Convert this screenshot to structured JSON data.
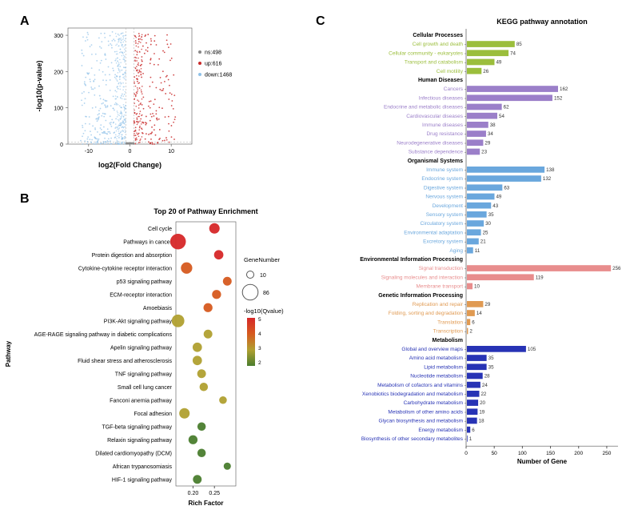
{
  "panelA": {
    "label": "A",
    "xlabel": "log2(Fold Change)",
    "ylabel": "-log10(p-value)",
    "xlim": [
      -15,
      15
    ],
    "ylim": [
      0,
      320
    ],
    "xticks": [
      -10,
      0,
      10
    ],
    "yticks": [
      0,
      100,
      200,
      300
    ],
    "legend": [
      {
        "label": "ns:498",
        "color": "#888888"
      },
      {
        "label": "up:616",
        "color": "#c92a2a"
      },
      {
        "label": "down:1468",
        "color": "#8fc1e8"
      }
    ],
    "colors": {
      "ns": "#888888",
      "up": "#c92a2a",
      "down": "#8fc1e8"
    },
    "hline_y": 5,
    "vline_x_neg": -1,
    "vline_x_pos": 1
  },
  "panelB": {
    "label": "B",
    "title": "Top 20 of Pathway Enrichment",
    "xlabel": "Rich Factor",
    "ylabel": "Pathway",
    "xlim": [
      0.16,
      0.3
    ],
    "xticks": [
      0.2,
      0.25
    ],
    "size_legend": {
      "title": "GeneNumber",
      "min": 10,
      "max": 86
    },
    "color_legend": {
      "title": "-log10(Qvalue)",
      "min": 2,
      "max": 5,
      "colors": [
        "#4a7d2e",
        "#b0a030",
        "#d65a1f",
        "#d62728"
      ]
    },
    "pathways": [
      {
        "name": "Cell cycle",
        "rich": 0.25,
        "n": 30,
        "q": 5.0
      },
      {
        "name": "Pathways in cancer",
        "rich": 0.165,
        "n": 86,
        "q": 4.8
      },
      {
        "name": "Protein digestion and absorption",
        "rich": 0.26,
        "n": 22,
        "q": 4.5
      },
      {
        "name": "Cytokine-cytokine receptor interaction",
        "rich": 0.185,
        "n": 38,
        "q": 4.3
      },
      {
        "name": "p53 signaling pathway",
        "rich": 0.28,
        "n": 18,
        "q": 4.2
      },
      {
        "name": "ECM-receptor interaction",
        "rich": 0.255,
        "n": 20,
        "q": 4.0
      },
      {
        "name": "Amoebiasis",
        "rich": 0.235,
        "n": 20,
        "q": 3.5
      },
      {
        "name": "PI3K-Akt signaling pathway",
        "rich": 0.165,
        "n": 50,
        "q": 3.4
      },
      {
        "name": "AGE-RAGE signaling pathway in diabetic complications",
        "rich": 0.235,
        "n": 18,
        "q": 3.2
      },
      {
        "name": "Apelin signaling pathway",
        "rich": 0.21,
        "n": 22,
        "q": 3.0
      },
      {
        "name": "Fluid shear stress and atherosclerosis",
        "rich": 0.21,
        "n": 22,
        "q": 2.9
      },
      {
        "name": "TNF signaling pathway",
        "rich": 0.22,
        "n": 18,
        "q": 2.8
      },
      {
        "name": "Small cell lung cancer",
        "rich": 0.225,
        "n": 16,
        "q": 2.7
      },
      {
        "name": "Fanconi anemia pathway",
        "rich": 0.27,
        "n": 12,
        "q": 2.6
      },
      {
        "name": "Focal adhesion",
        "rich": 0.18,
        "n": 30,
        "q": 2.5
      },
      {
        "name": "TGF-beta signaling pathway",
        "rich": 0.22,
        "n": 16,
        "q": 2.4
      },
      {
        "name": "Relaxin signaling pathway",
        "rich": 0.2,
        "n": 20,
        "q": 2.3
      },
      {
        "name": "Dilated cardiomyopathy (DCM)",
        "rich": 0.22,
        "n": 16,
        "q": 2.2
      },
      {
        "name": "African trypanosomiasis",
        "rich": 0.28,
        "n": 10,
        "q": 2.1
      },
      {
        "name": "HIF-1 signaling pathway",
        "rich": 0.21,
        "n": 18,
        "q": 2.0
      }
    ]
  },
  "panelC": {
    "label": "C",
    "title": "KEGG pathway annotation",
    "xlabel": "Number of Gene",
    "xlim": [
      0,
      270
    ],
    "xticks": [
      0,
      50,
      100,
      150,
      200,
      250
    ],
    "groups": [
      {
        "name": "Cellular Processes",
        "color": "#9bbe3c",
        "items": [
          {
            "name": "Cell growth and death",
            "n": 85
          },
          {
            "name": "Cellular community - eukaryotes",
            "n": 74
          },
          {
            "name": "Transport and catabolism",
            "n": 49
          },
          {
            "name": "Cell motility",
            "n": 26
          }
        ]
      },
      {
        "name": "Human Diseases",
        "color": "#9b7fc9",
        "items": [
          {
            "name": "Cancers",
            "n": 162
          },
          {
            "name": "Infectious diseases",
            "n": 152
          },
          {
            "name": "Endocrine and metabolic diseases",
            "n": 62
          },
          {
            "name": "Cardiovascular diseases",
            "n": 54
          },
          {
            "name": "Immune diseases",
            "n": 38
          },
          {
            "name": "Drug resistance",
            "n": 34
          },
          {
            "name": "Neurodegenerative diseases",
            "n": 29
          },
          {
            "name": "Substance dependence",
            "n": 23
          }
        ]
      },
      {
        "name": "Organismal Systems",
        "color": "#6aa7dd",
        "items": [
          {
            "name": "Immune system",
            "n": 138
          },
          {
            "name": "Endocrine system",
            "n": 132
          },
          {
            "name": "Digestive system",
            "n": 63
          },
          {
            "name": "Nervous system",
            "n": 49
          },
          {
            "name": "Development",
            "n": 43
          },
          {
            "name": "Sensory system",
            "n": 35
          },
          {
            "name": "Circulatory system",
            "n": 30
          },
          {
            "name": "Environmental adaptation",
            "n": 25
          },
          {
            "name": "Excretory system",
            "n": 21
          },
          {
            "name": "Aging",
            "n": 11
          }
        ]
      },
      {
        "name": "Environmental Information Processing",
        "color": "#e88d8d",
        "items": [
          {
            "name": "Signal transduction",
            "n": 256
          },
          {
            "name": "Signaling molecules and interaction",
            "n": 119
          },
          {
            "name": "Membrane transport",
            "n": 10
          }
        ]
      },
      {
        "name": "Genetic Information Processing",
        "color": "#e09a52",
        "items": [
          {
            "name": "Replication and repair",
            "n": 29
          },
          {
            "name": "Folding, sorting and degradation",
            "n": 14
          },
          {
            "name": "Translation",
            "n": 6
          },
          {
            "name": "Transcription",
            "n": 2
          }
        ]
      },
      {
        "name": "Metabolism",
        "color": "#2733b5",
        "items": [
          {
            "name": "Global and overview maps",
            "n": 105
          },
          {
            "name": "Amino acid metabolism",
            "n": 35
          },
          {
            "name": "Lipid metabolism",
            "n": 35
          },
          {
            "name": "Nucleotide metabolism",
            "n": 28
          },
          {
            "name": "Metabolism of cofactors and vitamins",
            "n": 24
          },
          {
            "name": "Xenobiotics biodegradation and metabolism",
            "n": 22
          },
          {
            "name": "Carbohydrate metabolism",
            "n": 20
          },
          {
            "name": "Metabolism of other amino acids",
            "n": 19
          },
          {
            "name": "Glycan biosynthesis and metabolism",
            "n": 18
          },
          {
            "name": "Energy metabolism",
            "n": 6
          },
          {
            "name": "Biosynthesis of other secondary metabolites",
            "n": 1
          }
        ]
      }
    ]
  }
}
